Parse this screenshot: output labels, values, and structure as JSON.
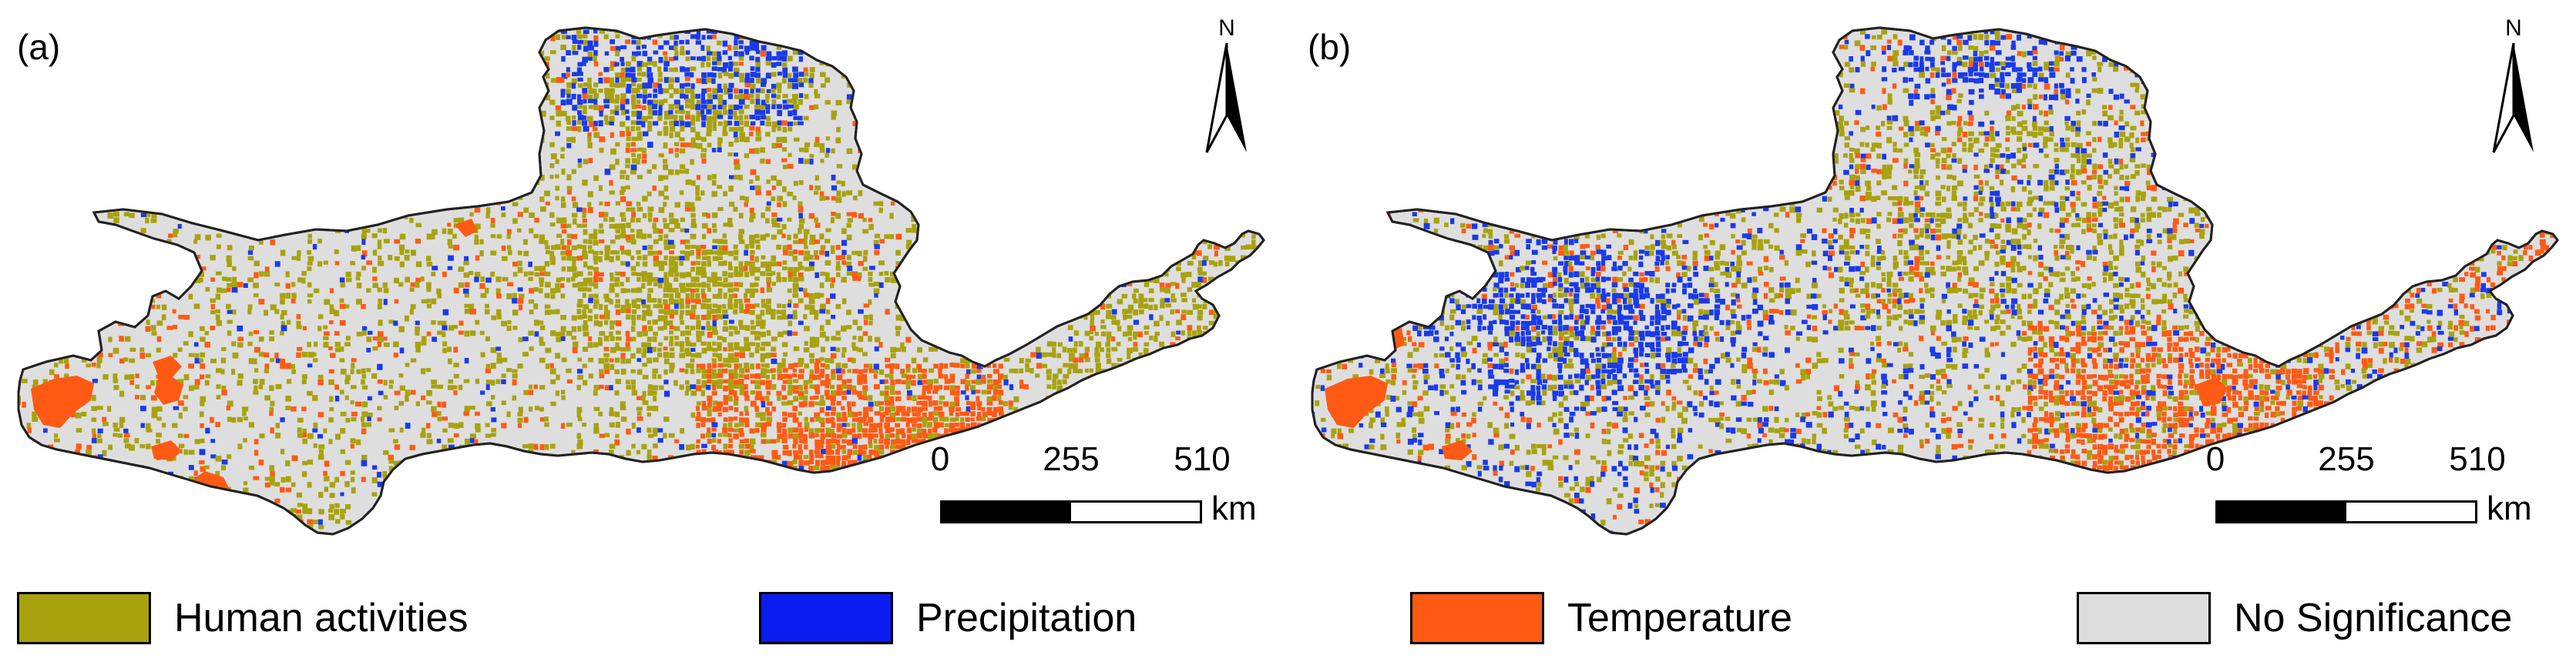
{
  "panels": [
    {
      "label": "(a)",
      "north_letter": "N",
      "scale": {
        "ticks": [
          "0",
          "255",
          "510"
        ],
        "unit": "km"
      }
    },
    {
      "label": "(b)",
      "north_letter": "N",
      "scale": {
        "ticks": [
          "0",
          "255",
          "510"
        ],
        "unit": "km"
      }
    }
  ],
  "legend": [
    {
      "label": "Human activities",
      "color": "#a8a20f"
    },
    {
      "label": "Precipitation",
      "color": "#0a1cf0"
    },
    {
      "label": "Temperature",
      "color": "#ff5a14"
    },
    {
      "label": "No Significance",
      "color": "#dcdcdc"
    }
  ],
  "colors": {
    "human": "#a8a20f",
    "precip": "#1a3ae8",
    "temp": "#ff5a14",
    "none": "#dedede",
    "outline": "#222222"
  }
}
